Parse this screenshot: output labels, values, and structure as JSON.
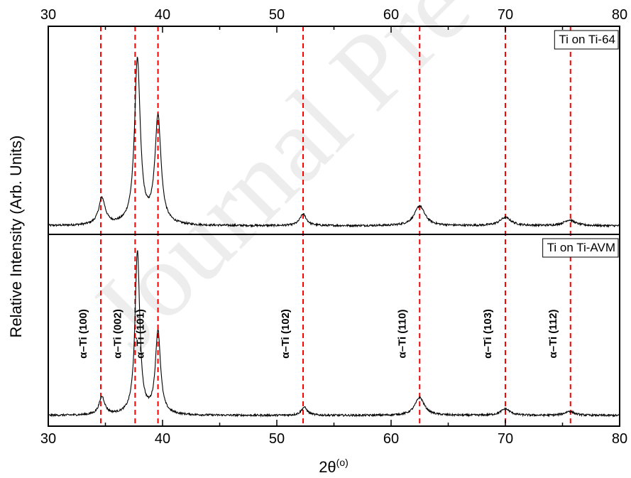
{
  "chart_data": {
    "type": "line",
    "watermark": "Journal Pre",
    "xlabel": "2θ",
    "xlabel_sup": "(o)",
    "ylabel": "Relative Intensity (Arb. Units)",
    "xlim": [
      30,
      80
    ],
    "xticks": [
      30,
      40,
      50,
      60,
      70,
      80
    ],
    "tick_labels": [
      "30",
      "40",
      "50",
      "60",
      "70",
      "80"
    ],
    "top_axis_ticks": true,
    "y_tick_labels": false,
    "grid": false,
    "panels": [
      {
        "label": "Ti on Ti-64",
        "label_position": "top-right",
        "peaks": [
          {
            "x": 34.7,
            "height": 0.16,
            "width": 0.35
          },
          {
            "x": 37.8,
            "height": 1.0,
            "width": 0.3
          },
          {
            "x": 39.6,
            "height": 0.65,
            "width": 0.32
          },
          {
            "x": 52.3,
            "height": 0.07,
            "width": 0.35
          },
          {
            "x": 62.5,
            "height": 0.12,
            "width": 0.55
          },
          {
            "x": 70.0,
            "height": 0.05,
            "width": 0.6
          },
          {
            "x": 75.6,
            "height": 0.035,
            "width": 0.6
          }
        ]
      },
      {
        "label": "Ti on Ti-AVM",
        "label_position": "top-right",
        "peaks": [
          {
            "x": 34.7,
            "height": 0.11,
            "width": 0.3
          },
          {
            "x": 37.8,
            "height": 1.0,
            "width": 0.25
          },
          {
            "x": 39.6,
            "height": 0.51,
            "width": 0.27
          },
          {
            "x": 52.4,
            "height": 0.05,
            "width": 0.32
          },
          {
            "x": 62.5,
            "height": 0.11,
            "width": 0.5
          },
          {
            "x": 70.0,
            "height": 0.04,
            "width": 0.5
          },
          {
            "x": 75.6,
            "height": 0.025,
            "width": 0.5
          }
        ]
      }
    ],
    "reference_lines": {
      "color": "#ff0000",
      "style": "dashed",
      "positions": [
        34.6,
        37.6,
        39.6,
        52.3,
        62.5,
        70.0,
        75.7
      ],
      "labels": [
        "α–Ti (100)",
        "α–Ti (002)",
        "α–Ti (101)",
        "α–Ti (102)",
        "α–Ti (110)",
        "α–Ti (103)",
        "α–Ti (112)"
      ]
    }
  }
}
